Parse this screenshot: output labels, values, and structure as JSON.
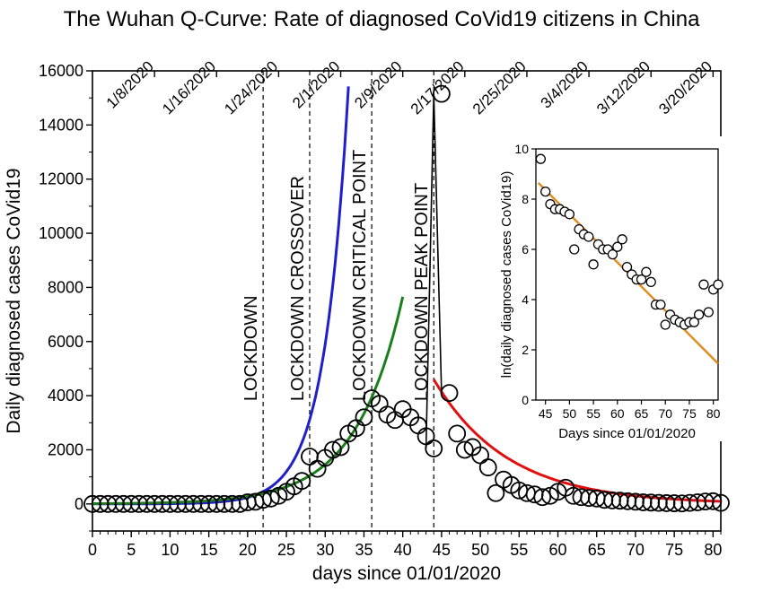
{
  "chart_data": {
    "type": "scatter",
    "title": "The Wuhan Q-Curve: Rate of diagnosed CoVid19 citizens in China",
    "xlabel": "days since 01/01/2020",
    "ylabel": "Daily diagnosed cases CoVid19",
    "xlim": [
      0,
      81
    ],
    "ylim": [
      -1000,
      16000
    ],
    "x_ticks": [
      0,
      5,
      10,
      15,
      20,
      25,
      30,
      35,
      40,
      45,
      50,
      55,
      60,
      65,
      70,
      75,
      80
    ],
    "y_ticks": [
      0,
      2000,
      4000,
      6000,
      8000,
      10000,
      12000,
      14000,
      16000
    ],
    "grid": false,
    "top_axis_dates": [
      {
        "day": 8,
        "label": "1/8/2020"
      },
      {
        "day": 16,
        "label": "1/16/2020"
      },
      {
        "day": 24,
        "label": "1/24/2020"
      },
      {
        "day": 32,
        "label": "2/1/2020"
      },
      {
        "day": 40,
        "label": "2/9/2020"
      },
      {
        "day": 48,
        "label": "2/17/2020"
      },
      {
        "day": 56,
        "label": "2/25/2020"
      },
      {
        "day": 64,
        "label": "3/4/2020"
      },
      {
        "day": 72,
        "label": "3/12/2020"
      },
      {
        "day": 80,
        "label": "3/20/2020"
      }
    ],
    "vertical_lines": [
      {
        "day": 22,
        "label": "LOCKDOWN"
      },
      {
        "day": 28,
        "label": "LOCKDOWN CROSSOVER"
      },
      {
        "day": 36,
        "label": "LOCKDOWN CRITICAL POINT"
      },
      {
        "day": 44,
        "label": "LOCKDOWN PEAK POINT"
      }
    ],
    "series": [
      {
        "marker": "open-circle",
        "x": [
          0,
          1,
          2,
          3,
          4,
          5,
          6,
          7,
          8,
          9,
          10,
          11,
          12,
          13,
          14,
          15,
          16,
          17,
          18,
          19,
          20,
          21,
          22,
          23,
          24,
          25,
          26,
          27,
          28,
          29,
          30,
          31,
          32,
          33,
          34,
          35,
          36,
          37,
          38,
          39,
          40,
          41,
          42,
          43,
          44,
          45,
          46,
          47,
          48,
          49,
          50,
          51,
          52,
          53,
          54,
          55,
          56,
          57,
          58,
          59,
          60,
          61,
          62,
          63,
          64,
          65,
          66,
          67,
          68,
          69,
          70,
          71,
          72,
          73,
          74,
          75,
          76,
          77,
          78,
          79,
          80,
          81
        ],
        "y": [
          0,
          0,
          0,
          0,
          0,
          0,
          0,
          0,
          0,
          0,
          0,
          0,
          0,
          0,
          0,
          0,
          0,
          0,
          0,
          0,
          60,
          80,
          150,
          200,
          300,
          450,
          650,
          850,
          1750,
          1300,
          1700,
          2000,
          2100,
          2600,
          2800,
          3200,
          3900,
          3700,
          3300,
          3100,
          3500,
          3200,
          2900,
          2500,
          2050,
          15150,
          4100,
          2600,
          2000,
          2100,
          1800,
          1350,
          400,
          900,
          700,
          500,
          400,
          350,
          250,
          300,
          450,
          600,
          300,
          250,
          220,
          200,
          150,
          130,
          120,
          100,
          80,
          60,
          50,
          40,
          30,
          25,
          20,
          40,
          60,
          90,
          100,
          40
        ]
      },
      {
        "name": "",
        "color": "#1f1fcc",
        "x": [
          0,
          33
        ],
        "equation": "0.4*exp(0.32*day)"
      },
      {
        "name": "",
        "color": "#1a7f1a",
        "x": [
          0,
          40
        ],
        "equation": "10*exp(0.166*day)"
      },
      {
        "name": "",
        "color": "#e01010",
        "x": [
          44,
          81
        ],
        "equation": "4600*exp(-0.105*(day-44))"
      },
      {
        "name": "",
        "color": "#000000",
        "line_only": true,
        "x": [
          43,
          44,
          45
        ],
        "y": [
          2050,
          15150,
          4100
        ]
      }
    ],
    "inset": {
      "type": "scatter",
      "xlabel": "Days since 01/01/2020",
      "ylabel": "ln(daily diagnosed cases CoVid19)",
      "xlim": [
        43,
        81
      ],
      "ylim": [
        0,
        10
      ],
      "x_ticks": [
        45,
        50,
        55,
        60,
        65,
        70,
        75,
        80
      ],
      "y_ticks": [
        0,
        2,
        4,
        6,
        8,
        10
      ],
      "x": [
        44,
        45,
        46,
        47,
        48,
        49,
        50,
        51,
        52,
        53,
        54,
        55,
        56,
        57,
        58,
        59,
        60,
        61,
        62,
        63,
        64,
        65,
        66,
        67,
        68,
        69,
        70,
        71,
        72,
        73,
        74,
        75,
        76,
        77,
        78,
        79,
        80,
        81
      ],
      "y": [
        9.6,
        8.3,
        7.8,
        7.6,
        7.6,
        7.5,
        7.4,
        6.0,
        6.8,
        6.6,
        6.5,
        5.4,
        6.2,
        6.0,
        6.0,
        5.8,
        6.1,
        6.4,
        5.3,
        5.0,
        4.8,
        4.8,
        5.1,
        4.7,
        3.8,
        3.8,
        3.0,
        3.4,
        3.2,
        3.1,
        3.0,
        3.1,
        3.1,
        3.4,
        4.6,
        3.5,
        4.4,
        4.6
      ],
      "fit": {
        "color": "#e08a1a",
        "x": [
          43.5,
          81
        ],
        "y": [
          8.65,
          1.45
        ]
      }
    }
  }
}
